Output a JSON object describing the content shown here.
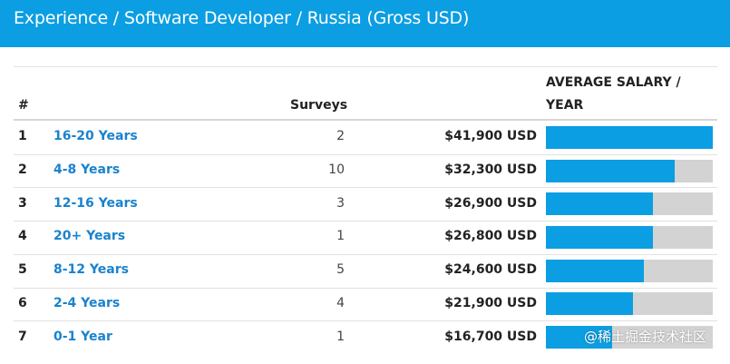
{
  "header": {
    "title": "Experience / Software Developer / Russia (Gross USD)"
  },
  "colors": {
    "accent": "#0b9ee2",
    "link": "#1a82cf",
    "bar_track": "#d3d3d3"
  },
  "table": {
    "columns": {
      "rank": "#",
      "surveys": "Surveys",
      "salary_line1": "AVERAGE SALARY /",
      "salary_line2": "YEAR"
    },
    "rows": [
      {
        "rank": "1",
        "experience": "16-20 Years",
        "surveys": "2",
        "salary": "$41,900 USD",
        "fraction": 1.0
      },
      {
        "rank": "2",
        "experience": "4-8 Years",
        "surveys": "10",
        "salary": "$32,300 USD",
        "fraction": 0.771
      },
      {
        "rank": "3",
        "experience": "12-16 Years",
        "surveys": "3",
        "salary": "$26,900 USD",
        "fraction": 0.642
      },
      {
        "rank": "4",
        "experience": "20+ Years",
        "surveys": "1",
        "salary": "$26,800 USD",
        "fraction": 0.64
      },
      {
        "rank": "5",
        "experience": "8-12 Years",
        "surveys": "5",
        "salary": "$24,600 USD",
        "fraction": 0.587
      },
      {
        "rank": "6",
        "experience": "2-4 Years",
        "surveys": "4",
        "salary": "$21,900 USD",
        "fraction": 0.523
      },
      {
        "rank": "7",
        "experience": "0-1 Year",
        "surveys": "1",
        "salary": "$16,700 USD",
        "fraction": 0.399
      }
    ]
  },
  "watermark": "@稀土掘金技术社区"
}
